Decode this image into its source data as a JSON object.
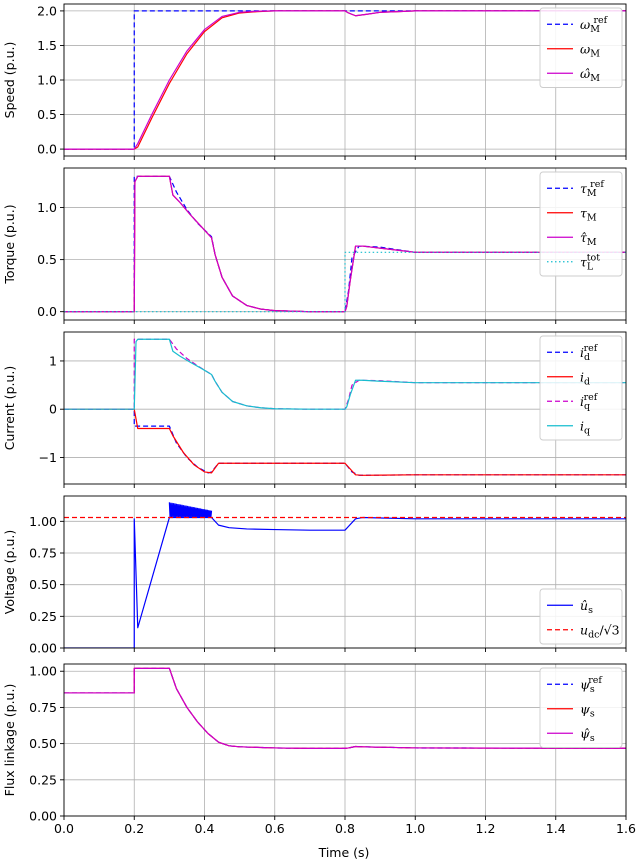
{
  "chart_data": {
    "type": "line",
    "xlabel": "Time (s)",
    "xlim": [
      0,
      1.6
    ],
    "xticks": [
      0.0,
      0.2,
      0.4,
      0.6,
      0.8,
      1.0,
      1.2,
      1.4,
      1.6
    ],
    "xtick_labels": [
      "0.0",
      "0.2",
      "0.4",
      "0.6",
      "0.8",
      "1.0",
      "1.2",
      "1.4",
      "1.6"
    ],
    "colors": {
      "blue": "#0000ff",
      "red": "#ff0000",
      "magenta": "#cc00cc",
      "cyan": "#17becf",
      "grid": "#b0b0b0"
    },
    "panels": [
      {
        "ylabel": "Speed (p.u.)",
        "ylim": [
          -0.1,
          2.1
        ],
        "yticks": [
          0.0,
          0.5,
          1.0,
          1.5,
          2.0
        ],
        "ytick_labels": [
          "0.0",
          "0.5",
          "1.0",
          "1.5",
          "2.0"
        ],
        "legend": "top-right",
        "series": [
          {
            "name": "ω_M^ref",
            "base": "ω",
            "sub": "M",
            "sup": "ref",
            "color": "#0000ff",
            "dash": "dashed",
            "x": [
              0,
              0.2,
              0.2,
              1.6
            ],
            "y": [
              0,
              0,
              2.0,
              2.0
            ]
          },
          {
            "name": "ω_M",
            "base": "ω",
            "sub": "M",
            "color": "#ff0000",
            "dash": "solid",
            "x": [
              0,
              0.2,
              0.21,
              0.25,
              0.3,
              0.35,
              0.4,
              0.45,
              0.5,
              0.55,
              0.6,
              0.7,
              0.8,
              0.81,
              0.83,
              0.86,
              0.9,
              0.95,
              1.0,
              1.6
            ],
            "y": [
              0,
              0,
              0.03,
              0.45,
              0.95,
              1.38,
              1.7,
              1.9,
              1.97,
              1.99,
              2.0,
              2.0,
              2.0,
              1.97,
              1.93,
              1.95,
              1.98,
              1.99,
              2.0,
              2.0
            ]
          },
          {
            "name": "ω̂_M",
            "base": "ω̂",
            "sub": "M",
            "color": "#cc00cc",
            "dash": "solid",
            "x": [
              0,
              0.2,
              0.21,
              0.25,
              0.3,
              0.35,
              0.4,
              0.45,
              0.5,
              0.55,
              0.6,
              0.7,
              0.8,
              0.81,
              0.83,
              0.86,
              0.9,
              0.95,
              1.0,
              1.6
            ],
            "y": [
              0,
              0,
              0.08,
              0.5,
              1.0,
              1.42,
              1.73,
              1.92,
              1.98,
              1.995,
              2.0,
              2.0,
              2.0,
              1.97,
              1.93,
              1.95,
              1.98,
              1.99,
              2.0,
              2.0
            ]
          }
        ]
      },
      {
        "ylabel": "Torque (p.u.)",
        "ylim": [
          -0.08,
          1.38
        ],
        "yticks": [
          0.0,
          0.5,
          1.0
        ],
        "ytick_labels": [
          "0.0",
          "0.5",
          "1.0"
        ],
        "legend": "top-right",
        "series": [
          {
            "name": "τ_M^ref",
            "base": "τ",
            "sub": "M",
            "sup": "ref",
            "color": "#0000ff",
            "dash": "dashed",
            "x": [
              0,
              0.2,
              0.2,
              0.3,
              0.32,
              0.35,
              0.38,
              0.42,
              0.43,
              0.45,
              0.48,
              0.52,
              0.56,
              0.6,
              0.7,
              0.8,
              0.81,
              0.82,
              0.84,
              0.9,
              1.0,
              1.6
            ],
            "y": [
              0,
              0,
              1.3,
              1.3,
              1.15,
              0.98,
              0.85,
              0.72,
              0.55,
              0.33,
              0.15,
              0.06,
              0.025,
              0.01,
              0.0,
              0.0,
              0.2,
              0.52,
              0.63,
              0.62,
              0.57,
              0.57
            ]
          },
          {
            "name": "τ_M",
            "base": "τ",
            "sub": "M",
            "color": "#ff0000",
            "dash": "solid",
            "x": [
              0,
              0.2,
              0.202,
              0.21,
              0.3,
              0.31,
              0.33,
              0.36,
              0.39,
              0.42,
              0.43,
              0.45,
              0.48,
              0.52,
              0.56,
              0.6,
              0.7,
              0.8,
              0.805,
              0.815,
              0.83,
              0.85,
              0.9,
              1.0,
              1.6
            ],
            "y": [
              0,
              0,
              1.25,
              1.3,
              1.3,
              1.12,
              1.05,
              0.93,
              0.82,
              0.71,
              0.55,
              0.33,
              0.15,
              0.06,
              0.025,
              0.01,
              0.0,
              0.0,
              0.05,
              0.3,
              0.63,
              0.63,
              0.61,
              0.57,
              0.57
            ]
          },
          {
            "name": "τ̂_M",
            "base": "τ̂",
            "sub": "M",
            "color": "#cc00cc",
            "dash": "solid",
            "x": [
              0,
              0.2,
              0.202,
              0.21,
              0.3,
              0.31,
              0.33,
              0.36,
              0.39,
              0.42,
              0.43,
              0.45,
              0.48,
              0.52,
              0.56,
              0.6,
              0.7,
              0.8,
              0.805,
              0.815,
              0.83,
              0.85,
              0.9,
              1.0,
              1.6
            ],
            "y": [
              0,
              0,
              1.25,
              1.3,
              1.3,
              1.12,
              1.05,
              0.93,
              0.82,
              0.71,
              0.55,
              0.33,
              0.15,
              0.06,
              0.025,
              0.01,
              0.0,
              0.0,
              0.05,
              0.3,
              0.63,
              0.63,
              0.61,
              0.57,
              0.57
            ]
          },
          {
            "name": "τ_L^tot",
            "base": "τ",
            "sub": "L",
            "sup": "tot",
            "color": "#17becf",
            "dash": "dotted",
            "x": [
              0,
              0.8,
              0.8,
              1.6
            ],
            "y": [
              0,
              0,
              0.57,
              0.57
            ]
          }
        ]
      },
      {
        "ylabel": "Current (p.u.)",
        "ylim": [
          -1.55,
          1.6
        ],
        "yticks": [
          -1,
          0,
          1
        ],
        "ytick_labels": [
          "−1",
          "0",
          "1"
        ],
        "legend": "top-right",
        "series": [
          {
            "name": "i_d^ref",
            "base": "i",
            "sub": "d",
            "sup": "ref",
            "color": "#0000ff",
            "dash": "dashed",
            "x": [
              0,
              0.2,
              0.2,
              0.3,
              0.32,
              0.35,
              0.38,
              0.41,
              0.42,
              0.44,
              0.6,
              0.8,
              0.82,
              0.84,
              1.0,
              1.6
            ],
            "y": [
              0,
              0,
              -0.35,
              -0.35,
              -0.7,
              -1.0,
              -1.2,
              -1.32,
              -1.3,
              -1.12,
              -1.12,
              -1.12,
              -1.3,
              -1.37,
              -1.36,
              -1.36
            ]
          },
          {
            "name": "i_d",
            "base": "i",
            "sub": "d",
            "color": "#ff0000",
            "dash": "solid",
            "x": [
              0,
              0.2,
              0.21,
              0.3,
              0.31,
              0.34,
              0.37,
              0.4,
              0.42,
              0.44,
              0.6,
              0.8,
              0.81,
              0.83,
              0.85,
              1.0,
              1.6
            ],
            "y": [
              0,
              0,
              -0.4,
              -0.4,
              -0.55,
              -0.9,
              -1.15,
              -1.3,
              -1.32,
              -1.12,
              -1.12,
              -1.12,
              -1.2,
              -1.36,
              -1.37,
              -1.36,
              -1.36
            ]
          },
          {
            "name": "i_q^ref",
            "base": "i",
            "sub": "q",
            "sup": "ref",
            "color": "#cc00cc",
            "dash": "dashed",
            "x": [
              0,
              0.2,
              0.2,
              0.3,
              0.32,
              0.35,
              0.38,
              0.42,
              0.43,
              0.45,
              0.48,
              0.52,
              0.56,
              0.6,
              0.7,
              0.8,
              0.81,
              0.82,
              0.84,
              0.9,
              1.0,
              1.6
            ],
            "y": [
              0,
              0,
              1.45,
              1.45,
              1.25,
              1.05,
              0.9,
              0.72,
              0.58,
              0.35,
              0.16,
              0.07,
              0.03,
              0.01,
              0.0,
              0.0,
              0.2,
              0.5,
              0.6,
              0.59,
              0.55,
              0.55
            ]
          },
          {
            "name": "i_q",
            "base": "i",
            "sub": "q",
            "color": "#17becf",
            "dash": "solid",
            "x": [
              0,
              0.2,
              0.205,
              0.21,
              0.3,
              0.31,
              0.33,
              0.36,
              0.39,
              0.42,
              0.43,
              0.45,
              0.48,
              0.52,
              0.56,
              0.6,
              0.7,
              0.8,
              0.805,
              0.815,
              0.83,
              0.85,
              0.9,
              1.0,
              1.6
            ],
            "y": [
              0,
              0,
              1.4,
              1.45,
              1.45,
              1.2,
              1.1,
              0.97,
              0.85,
              0.72,
              0.58,
              0.35,
              0.16,
              0.07,
              0.03,
              0.01,
              0.0,
              0.0,
              0.05,
              0.3,
              0.6,
              0.6,
              0.58,
              0.55,
              0.55
            ]
          }
        ]
      },
      {
        "ylabel": "Voltage (p.u.)",
        "ylim": [
          0.0,
          1.2
        ],
        "yticks": [
          0.0,
          0.25,
          0.5,
          0.75,
          1.0
        ],
        "ytick_labels": [
          "0.00",
          "0.25",
          "0.50",
          "0.75",
          "1.00"
        ],
        "legend": "lower-right",
        "series": [
          {
            "name": "û_s",
            "base": "û",
            "sub": "s",
            "color": "#0000ff",
            "dash": "solid",
            "x": [
              0,
              0.2,
              0.2,
              0.21,
              0.3,
              0.42,
              0.44,
              0.47,
              0.52,
              0.6,
              0.7,
              0.8,
              0.81,
              0.83,
              0.85,
              1.0,
              1.6
            ],
            "y": [
              0,
              0,
              1.02,
              0.16,
              1.03,
              1.03,
              0.97,
              0.95,
              0.94,
              0.935,
              0.93,
              0.93,
              0.96,
              1.02,
              1.03,
              1.02,
              1.02
            ],
            "oscillation": {
              "x_start": 0.3,
              "x_end": 0.42,
              "high": 1.15,
              "low": 1.03
            }
          },
          {
            "name": "u_dc/√3",
            "base": "u",
            "sub": "dc",
            "suffix": "/√3",
            "color": "#ff0000",
            "dash": "dashed",
            "x": [
              0,
              1.6
            ],
            "y": [
              1.03,
              1.03
            ]
          }
        ]
      },
      {
        "ylabel": "Flux linkage (p.u.)",
        "ylim": [
          0.0,
          1.05
        ],
        "yticks": [
          0.0,
          0.25,
          0.5,
          0.75,
          1.0
        ],
        "ytick_labels": [
          "0.00",
          "0.25",
          "0.50",
          "0.75",
          "1.00"
        ],
        "legend": "top-right",
        "series": [
          {
            "name": "ψ_s^ref",
            "base": "ψ",
            "sub": "s",
            "sup": "ref",
            "color": "#0000ff",
            "dash": "dashed",
            "x": [
              0,
              0.2,
              0.2,
              0.3,
              0.32,
              0.35,
              0.38,
              0.41,
              0.44,
              0.47,
              0.5,
              0.55,
              0.6,
              0.7,
              0.8,
              0.81,
              0.83,
              0.85,
              1.0,
              1.6
            ],
            "y": [
              0.85,
              0.85,
              1.02,
              1.02,
              0.88,
              0.75,
              0.65,
              0.57,
              0.51,
              0.485,
              0.478,
              0.474,
              0.47,
              0.467,
              0.467,
              0.47,
              0.48,
              0.478,
              0.47,
              0.468
            ]
          },
          {
            "name": "ψ_s",
            "base": "ψ",
            "sub": "s",
            "color": "#ff0000",
            "dash": "solid",
            "x": [
              0,
              0.2,
              0.2,
              0.3,
              0.32,
              0.35,
              0.38,
              0.41,
              0.44,
              0.47,
              0.5,
              0.55,
              0.6,
              0.7,
              0.8,
              0.81,
              0.83,
              0.85,
              1.0,
              1.6
            ],
            "y": [
              0.85,
              0.85,
              1.02,
              1.02,
              0.88,
              0.75,
              0.65,
              0.57,
              0.51,
              0.485,
              0.478,
              0.474,
              0.47,
              0.467,
              0.467,
              0.47,
              0.48,
              0.478,
              0.47,
              0.468
            ]
          },
          {
            "name": "ψ̂_s",
            "base": "ψ̂",
            "sub": "s",
            "color": "#cc00cc",
            "dash": "solid",
            "x": [
              0,
              0.2,
              0.2,
              0.3,
              0.32,
              0.35,
              0.38,
              0.41,
              0.44,
              0.47,
              0.5,
              0.55,
              0.6,
              0.7,
              0.8,
              0.81,
              0.83,
              0.85,
              1.0,
              1.6
            ],
            "y": [
              0.85,
              0.85,
              1.02,
              1.02,
              0.88,
              0.75,
              0.65,
              0.57,
              0.51,
              0.485,
              0.478,
              0.474,
              0.47,
              0.467,
              0.467,
              0.47,
              0.48,
              0.478,
              0.47,
              0.468
            ]
          }
        ]
      }
    ]
  }
}
